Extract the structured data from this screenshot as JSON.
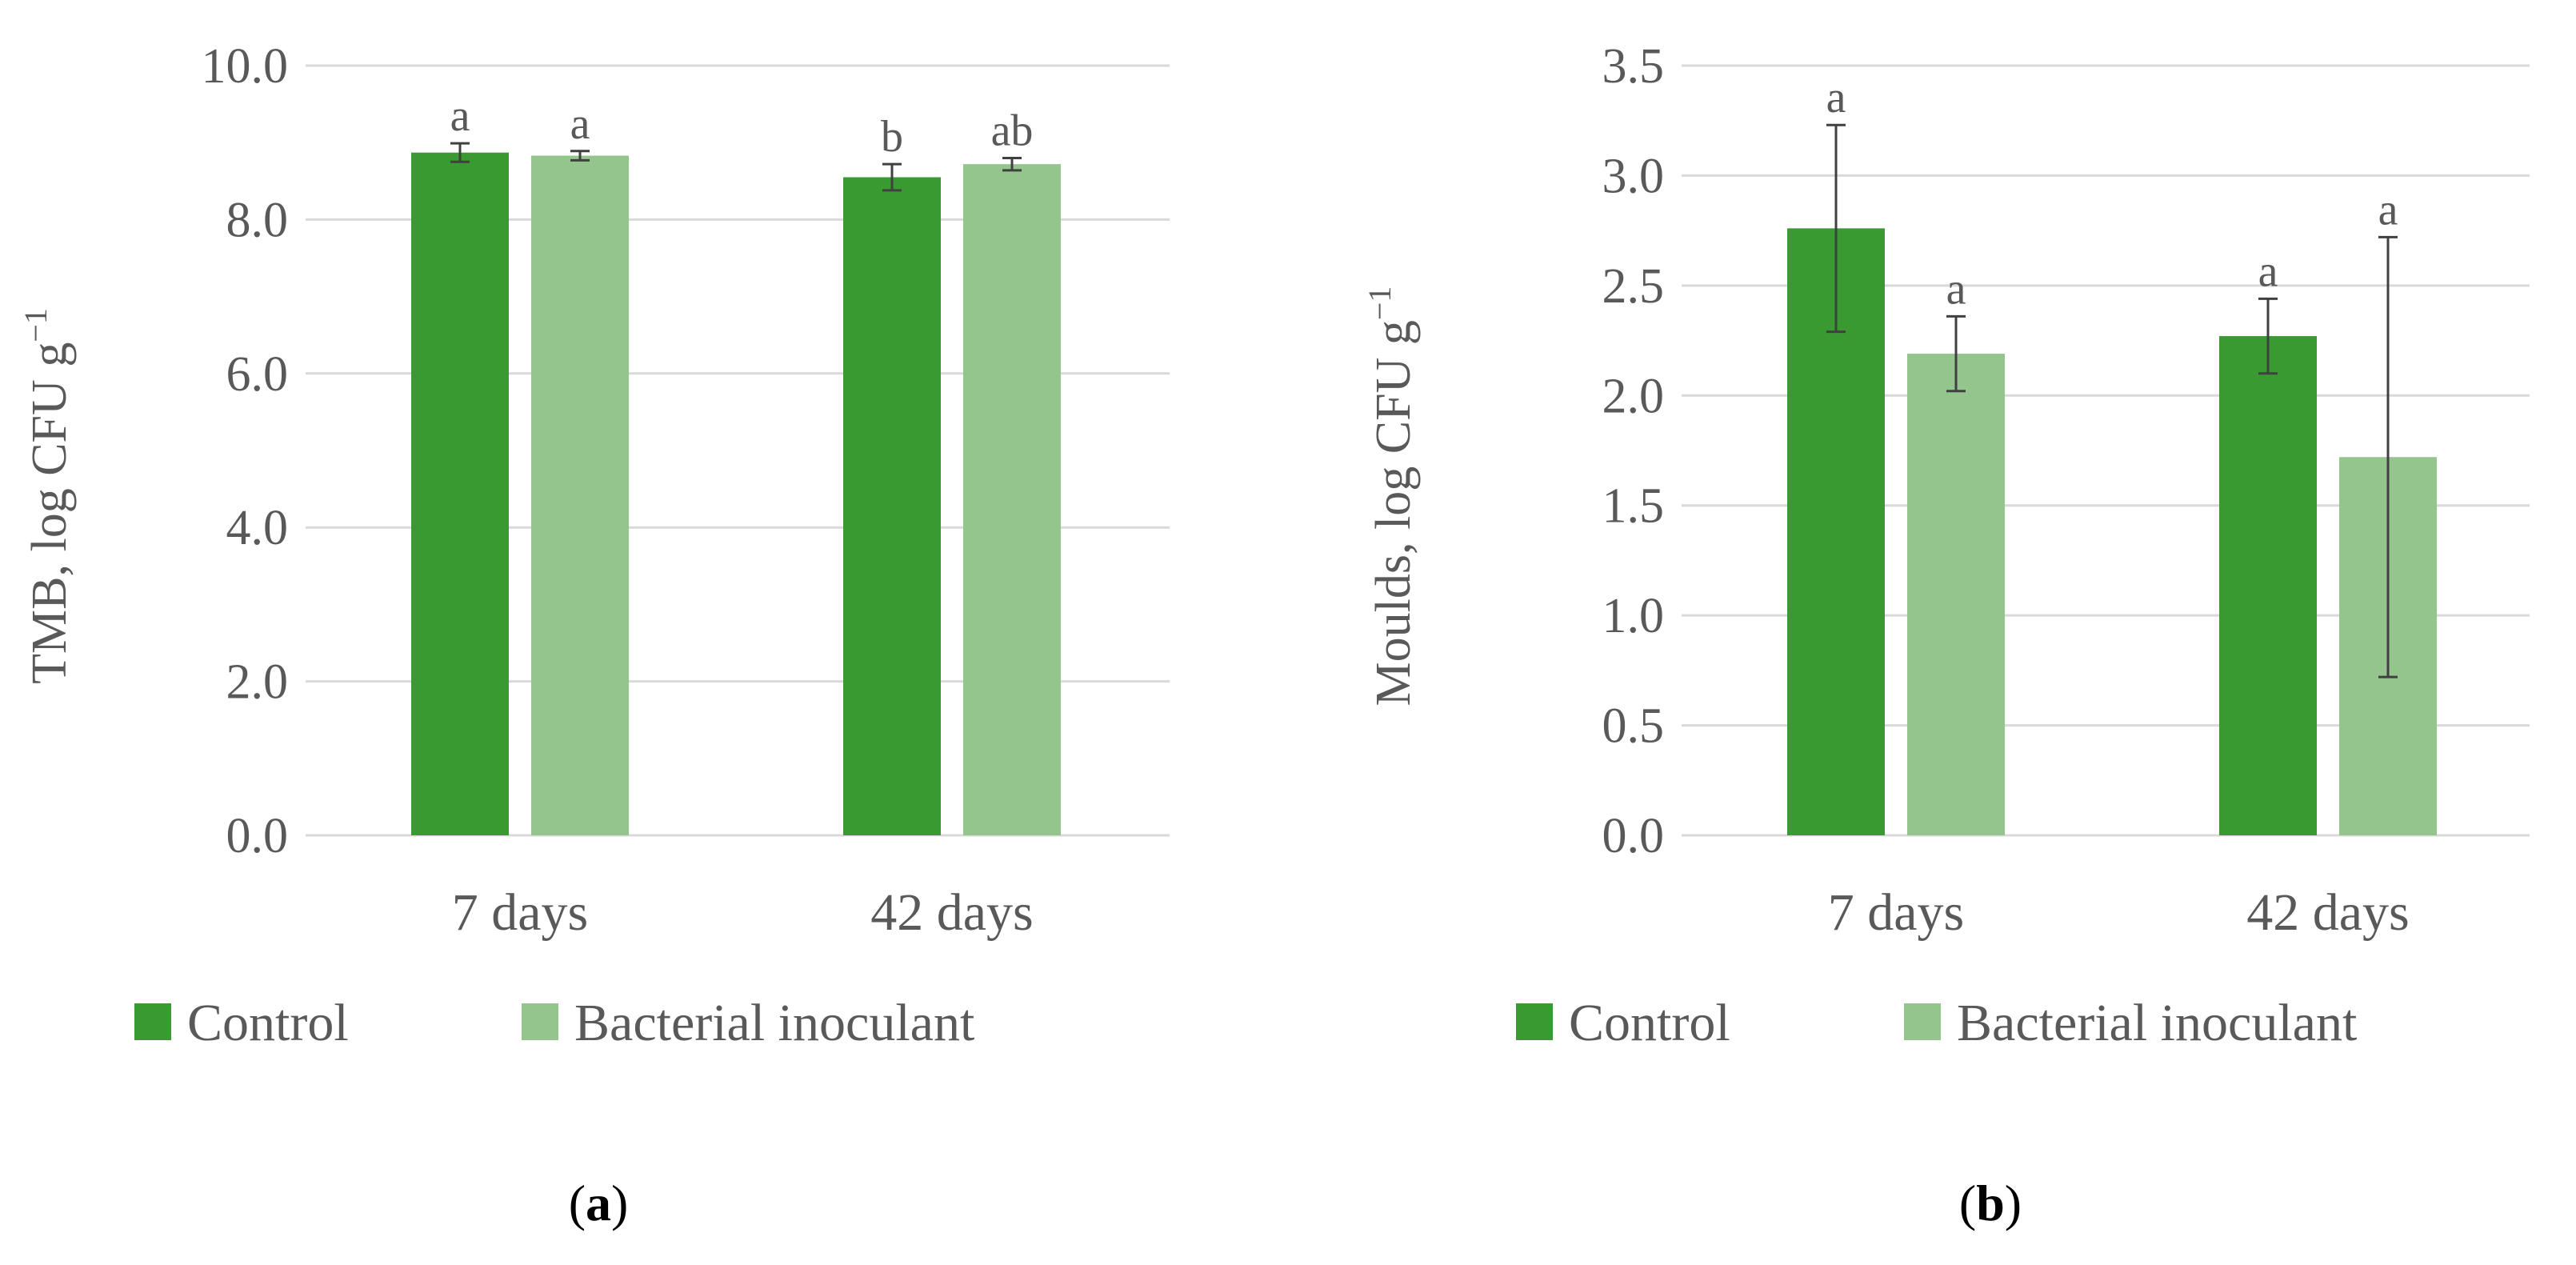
{
  "chart_data": [
    {
      "type": "bar",
      "panel_label": "a",
      "categories": [
        "7 days",
        "42 days"
      ],
      "series": [
        {
          "name": "Control",
          "color": "#3a9a32",
          "values": [
            8.87,
            8.55
          ],
          "errors": [
            0.12,
            0.17
          ],
          "letters": [
            "a",
            "b"
          ]
        },
        {
          "name": "Bacterial inoculant",
          "color": "#93c58c",
          "values": [
            8.83,
            8.72
          ],
          "errors": [
            0.06,
            0.08
          ],
          "letters": [
            "a",
            "ab"
          ]
        }
      ],
      "title": "",
      "xlabel": "",
      "ylabel": "TMB, log CFU g",
      "ylabel_sup": "−1",
      "ylim": [
        0,
        10
      ],
      "yticks": [
        "0.0",
        "2.0",
        "4.0",
        "6.0",
        "8.0",
        "10.0"
      ],
      "grid": true,
      "legend_position": "bottom"
    },
    {
      "type": "bar",
      "panel_label": "b",
      "categories": [
        "7 days",
        "42 days"
      ],
      "series": [
        {
          "name": "Control",
          "color": "#3a9a32",
          "values": [
            2.76,
            2.27
          ],
          "errors": [
            0.47,
            0.17
          ],
          "letters": [
            "a",
            "a"
          ]
        },
        {
          "name": "Bacterial inoculant",
          "color": "#93c58c",
          "values": [
            2.19,
            1.72
          ],
          "errors": [
            0.17,
            1.0
          ],
          "letters": [
            "a",
            "a"
          ]
        }
      ],
      "title": "",
      "xlabel": "",
      "ylabel": "Moulds, log CFU g",
      "ylabel_sup": "−1",
      "ylim": [
        0,
        3.5
      ],
      "yticks": [
        "0.0",
        "0.5",
        "1.0",
        "1.5",
        "2.0",
        "2.5",
        "3.0",
        "3.5"
      ],
      "grid": true,
      "legend_position": "bottom"
    }
  ]
}
